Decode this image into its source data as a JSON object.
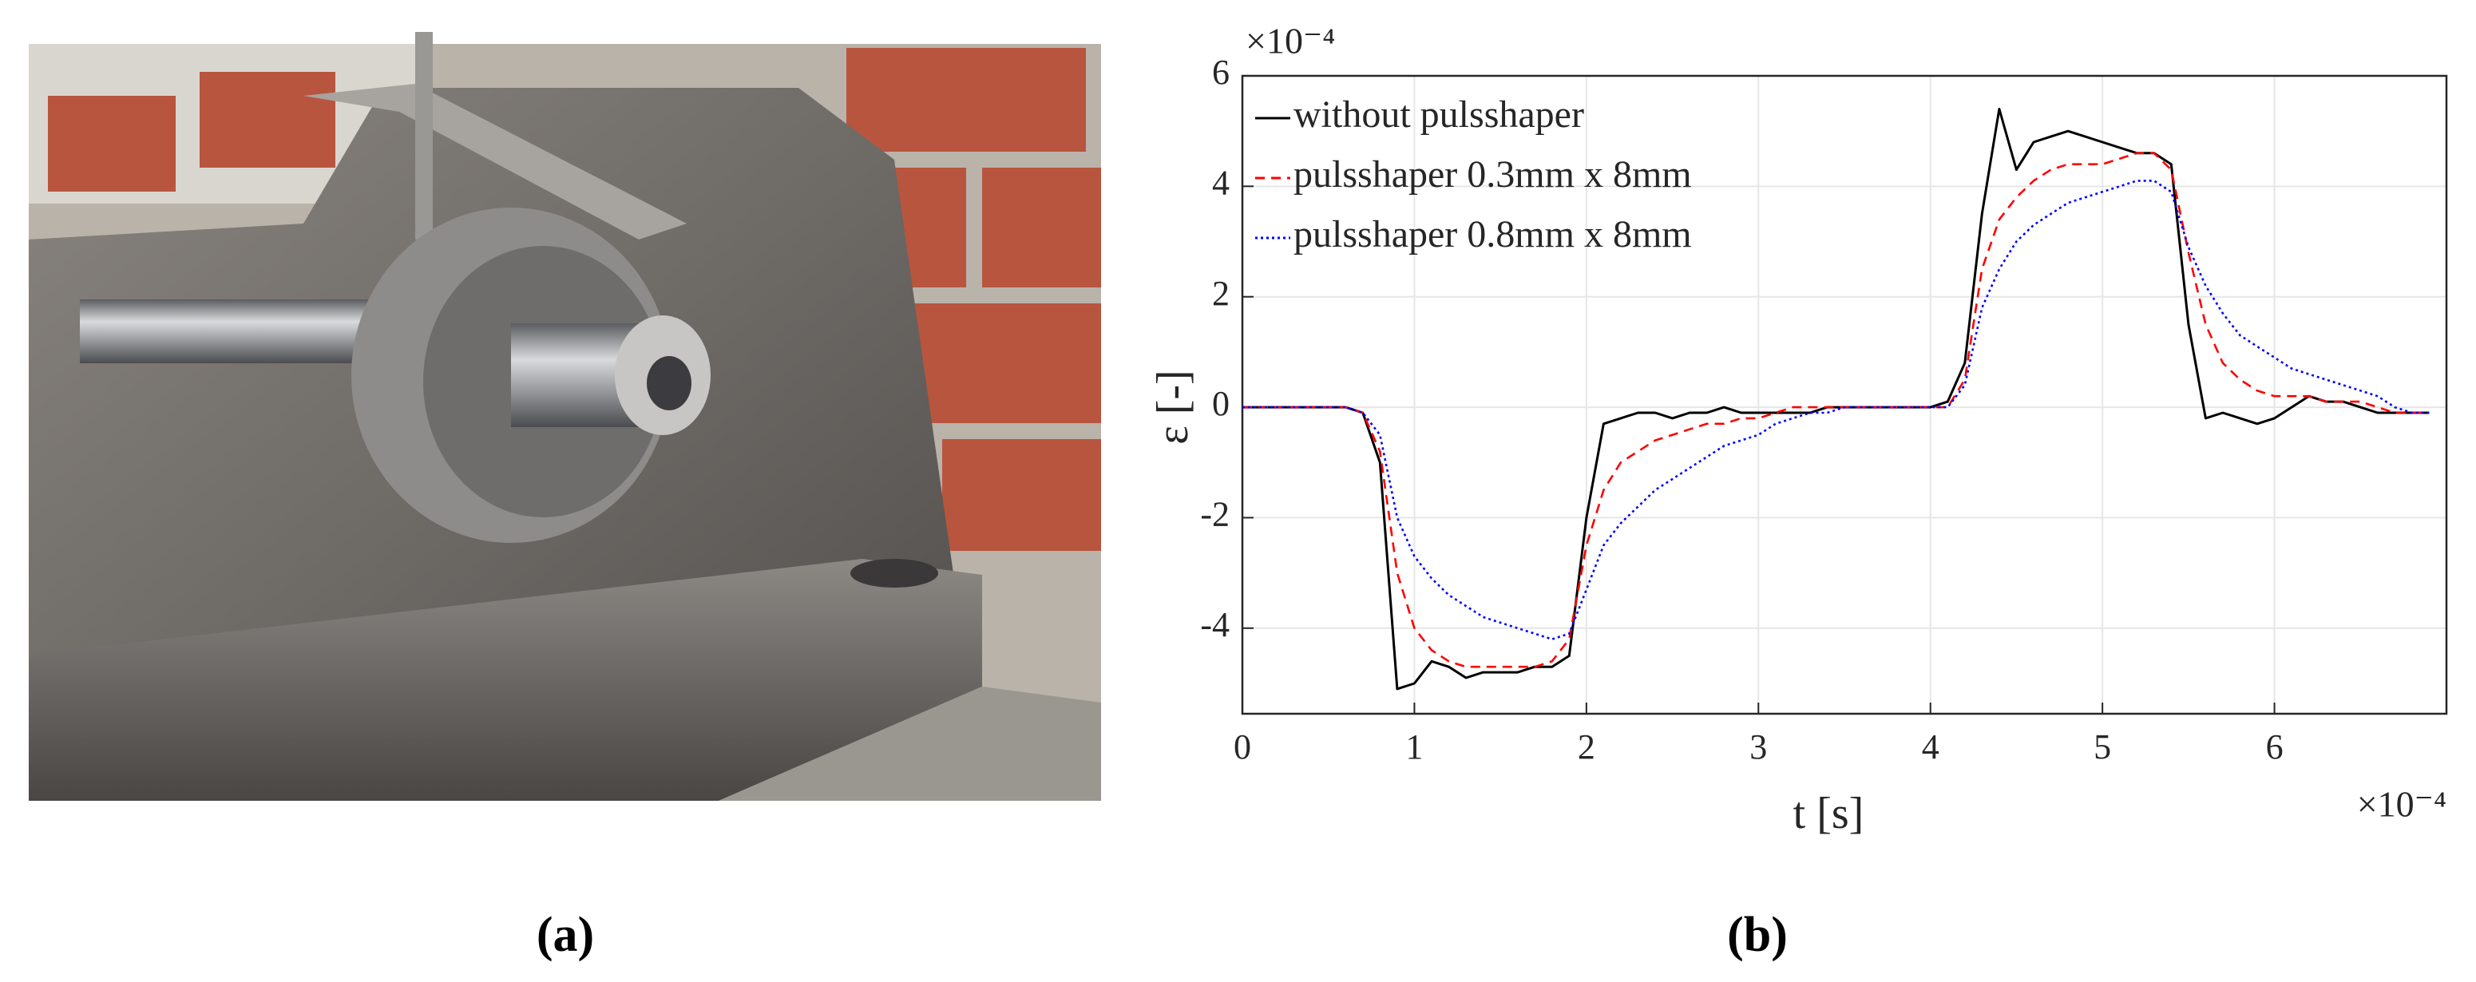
{
  "panels": {
    "a": "(a)",
    "b": "(b)"
  },
  "chart_data": {
    "type": "line",
    "xlabel": "t [s]",
    "ylabel": "ε [-]",
    "x_multiplier": "×10⁻⁴",
    "y_multiplier": "×10⁻⁴",
    "x": [
      0,
      0.1,
      0.2,
      0.3,
      0.4,
      0.5,
      0.6,
      0.7,
      0.8,
      0.9,
      1.0,
      1.1,
      1.2,
      1.3,
      1.4,
      1.5,
      1.6,
      1.7,
      1.8,
      1.9,
      2.0,
      2.1,
      2.2,
      2.3,
      2.4,
      2.5,
      2.6,
      2.7,
      2.8,
      2.9,
      3.0,
      3.1,
      3.2,
      3.3,
      3.4,
      3.5,
      3.6,
      3.7,
      3.8,
      3.9,
      4.0,
      4.1,
      4.2,
      4.3,
      4.4,
      4.5,
      4.6,
      4.7,
      4.8,
      4.9,
      5.0,
      5.1,
      5.2,
      5.3,
      5.4,
      5.5,
      5.6,
      5.7,
      5.8,
      5.9,
      6.0,
      6.1,
      6.2,
      6.3,
      6.4,
      6.5,
      6.6,
      6.7,
      6.8,
      6.9
    ],
    "series": [
      {
        "name": "without pulsshaper",
        "color": "#000000",
        "linestyle": "solid",
        "values": [
          0,
          0,
          0,
          0,
          0,
          0,
          0,
          -0.1,
          -1.0,
          -5.1,
          -5.0,
          -4.6,
          -4.7,
          -4.9,
          -4.8,
          -4.8,
          -4.8,
          -4.7,
          -4.7,
          -4.5,
          -2.0,
          -0.3,
          -0.2,
          -0.1,
          -0.1,
          -0.2,
          -0.1,
          -0.1,
          0,
          -0.1,
          -0.1,
          -0.1,
          -0.1,
          -0.1,
          0,
          0,
          0,
          0,
          0,
          0,
          0,
          0.1,
          0.8,
          3.5,
          5.4,
          4.3,
          4.8,
          4.9,
          5.0,
          4.9,
          4.8,
          4.7,
          4.6,
          4.6,
          4.4,
          1.5,
          -0.2,
          -0.1,
          -0.2,
          -0.3,
          -0.2,
          0,
          0.2,
          0.1,
          0.1,
          0,
          -0.1,
          -0.1,
          -0.1,
          -0.1
        ]
      },
      {
        "name": "pulsshaper 0.3mm x 8mm",
        "color": "#ff0000",
        "linestyle": "dashed",
        "values": [
          0,
          0,
          0,
          0,
          0,
          0,
          0,
          -0.1,
          -0.8,
          -3.0,
          -4.0,
          -4.4,
          -4.6,
          -4.7,
          -4.7,
          -4.7,
          -4.7,
          -4.7,
          -4.6,
          -4.2,
          -2.5,
          -1.5,
          -1.0,
          -0.8,
          -0.6,
          -0.5,
          -0.4,
          -0.3,
          -0.3,
          -0.2,
          -0.2,
          -0.1,
          0,
          0,
          0,
          0,
          0,
          0,
          0,
          0,
          0,
          0,
          0.5,
          2.5,
          3.4,
          3.8,
          4.1,
          4.3,
          4.4,
          4.4,
          4.4,
          4.5,
          4.6,
          4.6,
          4.3,
          2.8,
          1.5,
          0.8,
          0.5,
          0.3,
          0.2,
          0.2,
          0.2,
          0.1,
          0.1,
          0.1,
          0,
          -0.1,
          -0.1,
          -0.1
        ]
      },
      {
        "name": "pulsshaper 0.8mm x 8mm",
        "color": "#0000ff",
        "linestyle": "dotted",
        "values": [
          0,
          0,
          0,
          0,
          0,
          0,
          0,
          -0.1,
          -0.5,
          -2.0,
          -2.7,
          -3.1,
          -3.4,
          -3.6,
          -3.8,
          -3.9,
          -4.0,
          -4.1,
          -4.2,
          -4.1,
          -3.3,
          -2.5,
          -2.1,
          -1.8,
          -1.5,
          -1.3,
          -1.1,
          -0.9,
          -0.7,
          -0.6,
          -0.5,
          -0.3,
          -0.2,
          -0.1,
          -0.1,
          0,
          0,
          0,
          0,
          0,
          0,
          0,
          0.4,
          1.8,
          2.5,
          3.0,
          3.3,
          3.5,
          3.7,
          3.8,
          3.9,
          4.0,
          4.1,
          4.1,
          3.9,
          2.9,
          2.2,
          1.7,
          1.3,
          1.1,
          0.9,
          0.7,
          0.6,
          0.5,
          0.4,
          0.3,
          0.2,
          0,
          -0.1,
          -0.1
        ]
      }
    ],
    "xlim": [
      0,
      7
    ],
    "ylim": [
      -5.55,
      6
    ],
    "xticks": [
      0,
      1,
      2,
      3,
      4,
      5,
      6
    ],
    "yticks": [
      -4,
      -2,
      0,
      2,
      4,
      6
    ],
    "grid": true,
    "legend": "upper-left"
  }
}
